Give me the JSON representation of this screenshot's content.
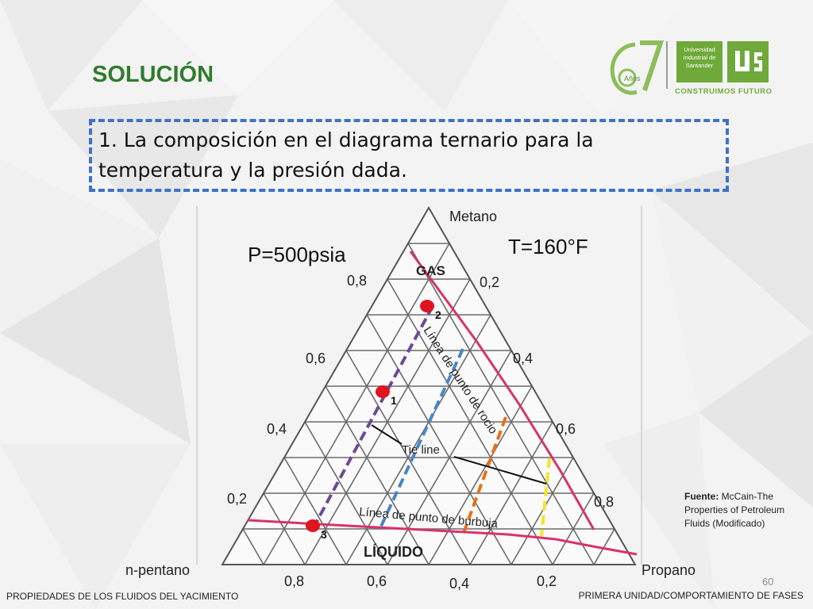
{
  "slide": {
    "title": "SOLUCIÓN",
    "heading": "1. La composición en el diagrama ternario para la temperatura y la presión dada.",
    "footer_left": "PROPIEDADES DE LOS FLUIDOS DEL YACIMIENTO",
    "footer_right": "PRIMERA UNIDAD/COMPORTAMIENTO DE FASES",
    "page_number": "60",
    "source_label": "Fuente:",
    "source_text": " McCain-The Properties of Petroleum Fluids (Modificado)"
  },
  "logo": {
    "anniversary_number": "67",
    "anniversary_word": "Años",
    "university_line1": "Universidad",
    "university_line2": "Industrial de",
    "university_line3": "Santander",
    "motto": "CONSTRUIMOS FUTURO",
    "accent_color": "#6fa93a"
  },
  "diagram": {
    "apex_top": "Metano",
    "apex_left": "n-pentano",
    "apex_right": "Propano",
    "pressure": "P=500psia",
    "temperature": "T=160°F",
    "left_axis_ticks": [
      "0,8",
      "0,6",
      "0,4",
      "0,2"
    ],
    "right_axis_ticks": [
      "0,2",
      "0,4",
      "0,6",
      "0,8"
    ],
    "bottom_axis_ticks": [
      "0,8",
      "0,6",
      "0,4",
      "0,2"
    ],
    "region_gas": "GAS",
    "region_liquid": "LÍQUIDO",
    "dew_line_label": "Línea de punto de rocio",
    "bubble_line_label": "Línea de punto de burbuja",
    "tie_line_label": "Tie line",
    "points": [
      {
        "label": "1",
        "methane": 0.53,
        "propane": 0.16
      },
      {
        "label": "2",
        "methane": 0.82,
        "propane": 0.12
      },
      {
        "label": "3",
        "methane": 0.05,
        "propane": 0.12
      }
    ],
    "colors": {
      "grid": "#6b6b6b",
      "dew_bubble_curve": "#d6336c",
      "point": "#e0141e",
      "tie_purple": "#6a4b93",
      "tie_blue": "#4a86c5",
      "tie_orange": "#e8701a",
      "tie_yellow": "#f4e52a"
    }
  }
}
